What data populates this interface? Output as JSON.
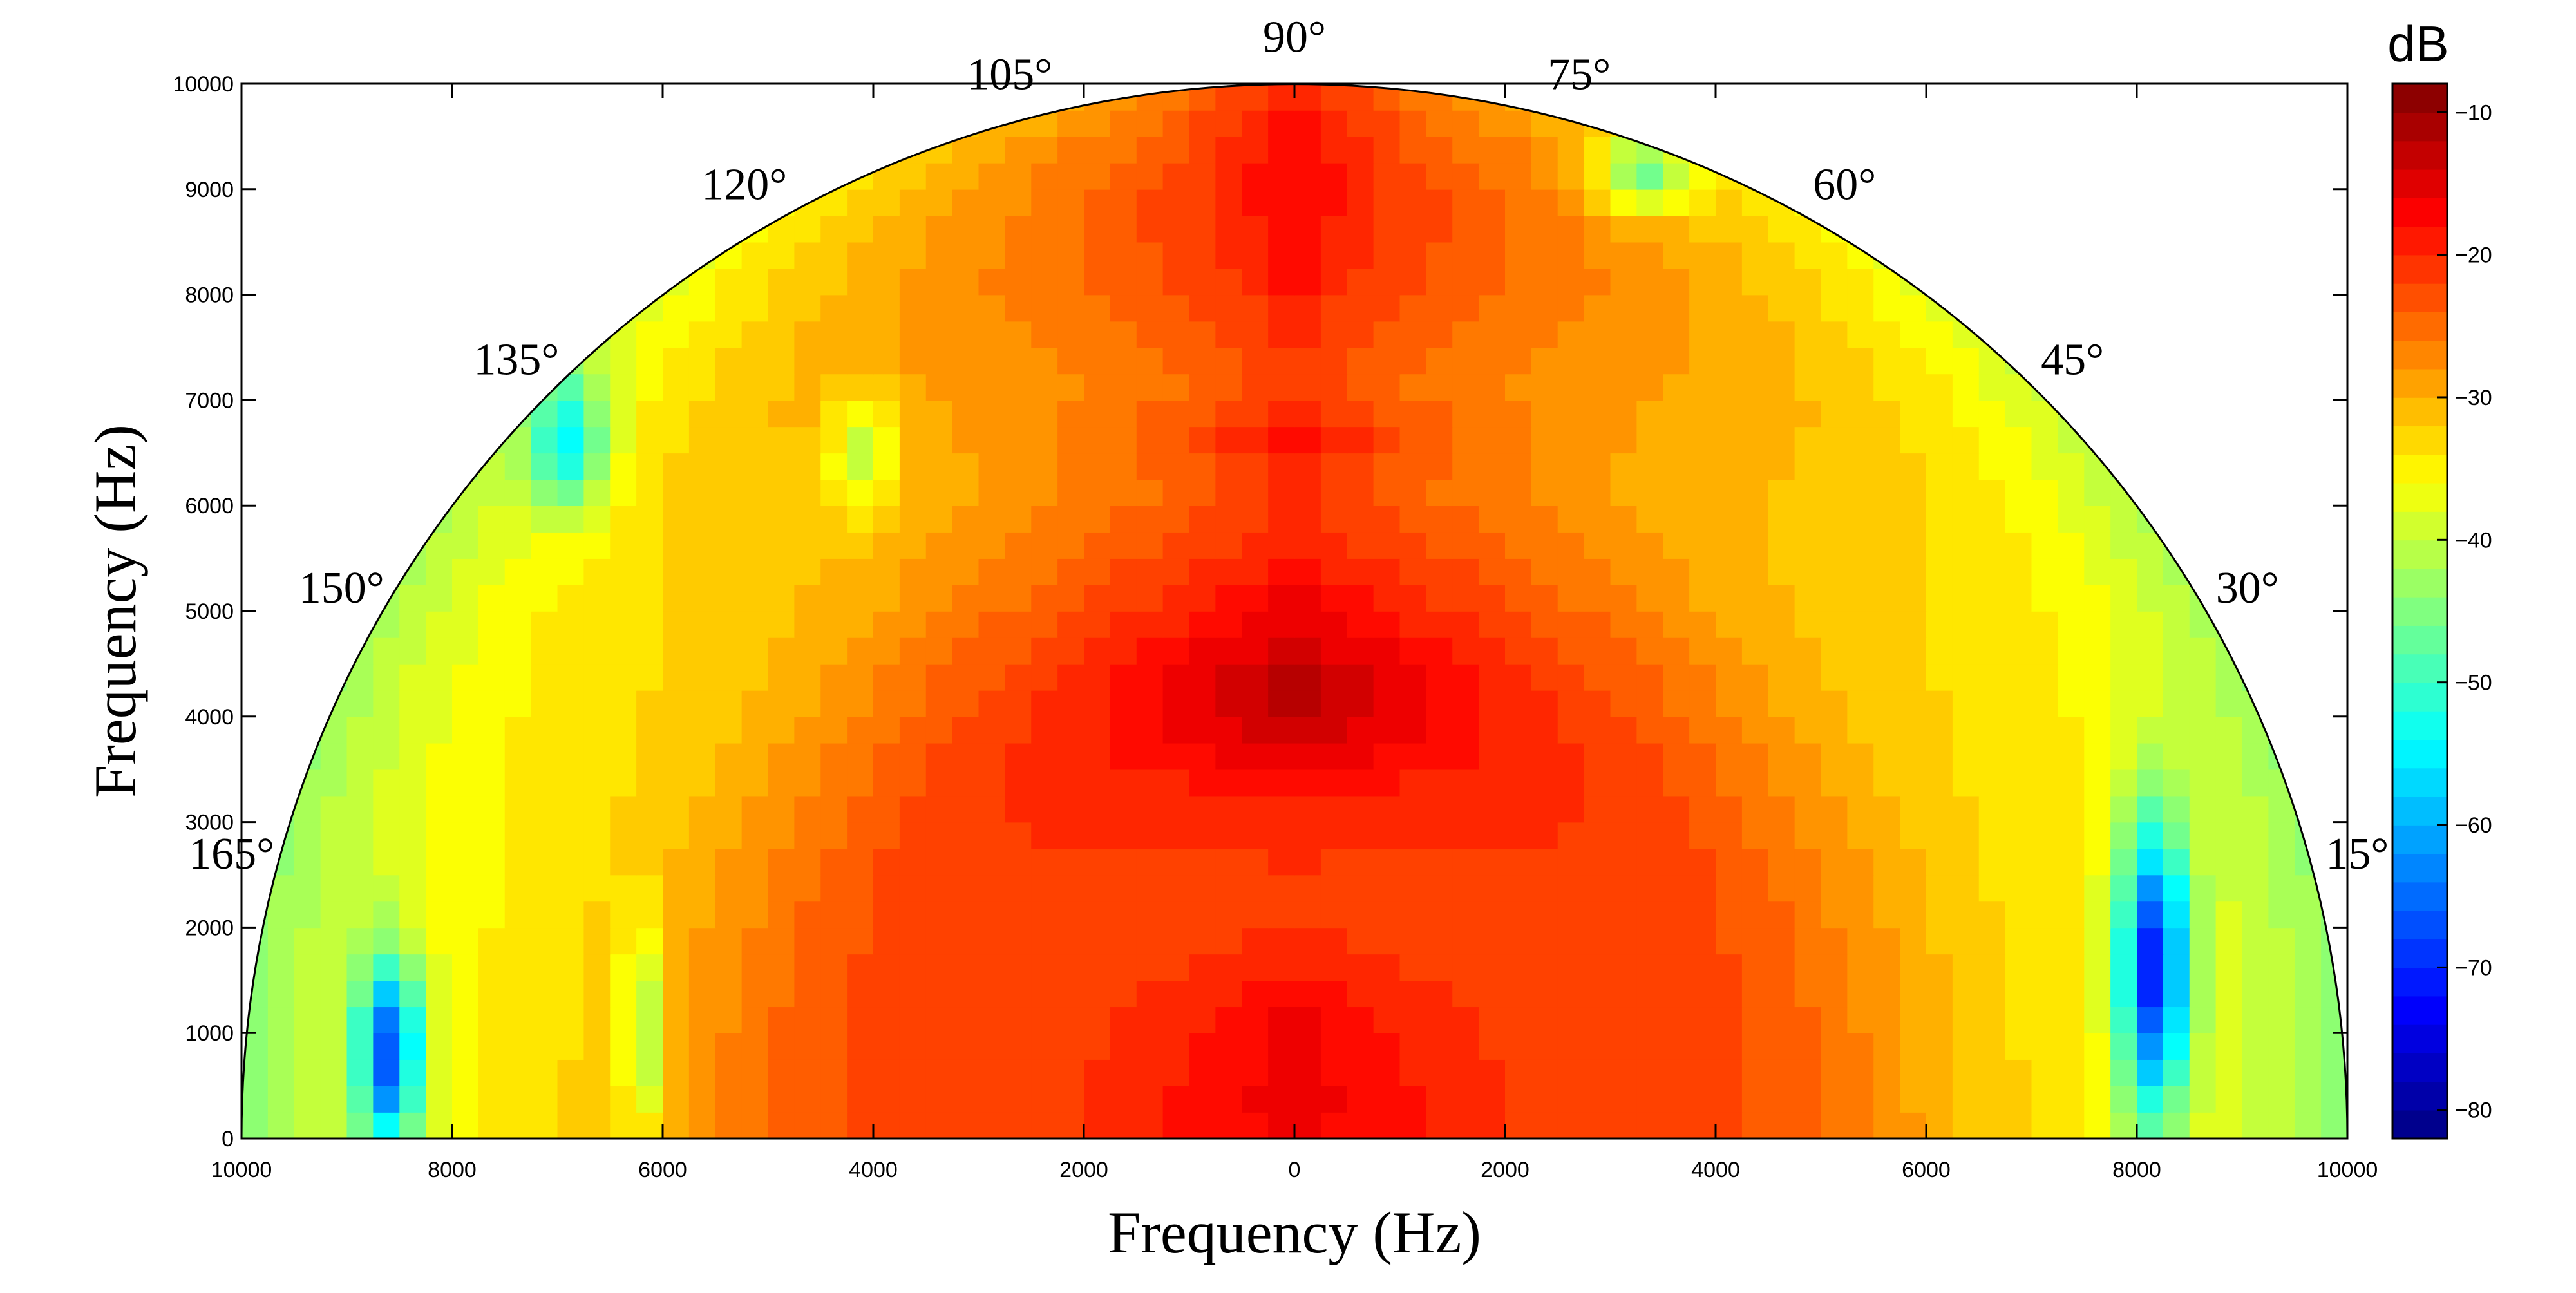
{
  "chart_data": {
    "type": "heatmap",
    "subtype": "polar-contour (half disc)",
    "xlabel": "Frequency (Hz)",
    "ylabel": "Frequency (Hz)",
    "xlim": [
      -10000,
      10000
    ],
    "ylim": [
      0,
      10000
    ],
    "x_ticks": [
      -10000,
      -8000,
      -6000,
      -4000,
      -2000,
      0,
      2000,
      4000,
      6000,
      8000,
      10000
    ],
    "x_tick_labels": [
      "10000",
      "8000",
      "6000",
      "4000",
      "2000",
      "0",
      "2000",
      "4000",
      "6000",
      "8000",
      "10000"
    ],
    "y_ticks": [
      0,
      1000,
      2000,
      3000,
      4000,
      5000,
      6000,
      7000,
      8000,
      9000,
      10000
    ],
    "y_tick_labels": [
      "0",
      "1000",
      "2000",
      "3000",
      "4000",
      "5000",
      "6000",
      "7000",
      "8000",
      "9000",
      "10000"
    ],
    "angle_labels": [
      {
        "deg": 15,
        "text": "15°"
      },
      {
        "deg": 30,
        "text": "30°"
      },
      {
        "deg": 45,
        "text": "45°"
      },
      {
        "deg": 60,
        "text": "60°"
      },
      {
        "deg": 75,
        "text": "75°"
      },
      {
        "deg": 90,
        "text": "90°"
      },
      {
        "deg": 105,
        "text": "105°"
      },
      {
        "deg": 120,
        "text": "120°"
      },
      {
        "deg": 135,
        "text": "135°"
      },
      {
        "deg": 150,
        "text": "150°"
      },
      {
        "deg": 165,
        "text": "165°"
      }
    ],
    "colorbar": {
      "title": "dB",
      "range": [
        -82,
        -8
      ],
      "ticks": [
        -10,
        -20,
        -30,
        -40,
        -50,
        -60,
        -70,
        -80
      ],
      "tick_labels": [
        "−10",
        "−20",
        "−30",
        "−40",
        "−50",
        "−60",
        "−70",
        "−80"
      ],
      "colormap": "jet"
    },
    "features": [
      {
        "name": "peak",
        "x": 0,
        "y": 6650,
        "sx": 1750,
        "sy": 330,
        "db": 4
      },
      {
        "name": "peak",
        "x": 0,
        "y": 4100,
        "sx": 1500,
        "sy": 650,
        "db": 4
      },
      {
        "name": "peak",
        "x": 0,
        "y": 1250,
        "sx": 600,
        "sy": 250,
        "db": 3
      },
      {
        "name": "valley",
        "x": 8150,
        "y": 1600,
        "sx": 330,
        "sy": 1400,
        "db": -35
      },
      {
        "name": "valley",
        "x": -8600,
        "y": 800,
        "sx": 300,
        "sy": 900,
        "db": -30
      },
      {
        "name": "valley",
        "x": -6900,
        "y": 6600,
        "sx": 380,
        "sy": 650,
        "db": -17
      },
      {
        "name": "valley",
        "x": -4100,
        "y": 6500,
        "sx": 320,
        "sy": 550,
        "db": -10
      },
      {
        "name": "valley",
        "x": 3300,
        "y": 9150,
        "sx": 450,
        "sy": 350,
        "db": -15
      },
      {
        "name": "valley",
        "x": -6200,
        "y": 1000,
        "sx": 200,
        "sy": 1000,
        "db": -12
      }
    ],
    "grid": false
  }
}
